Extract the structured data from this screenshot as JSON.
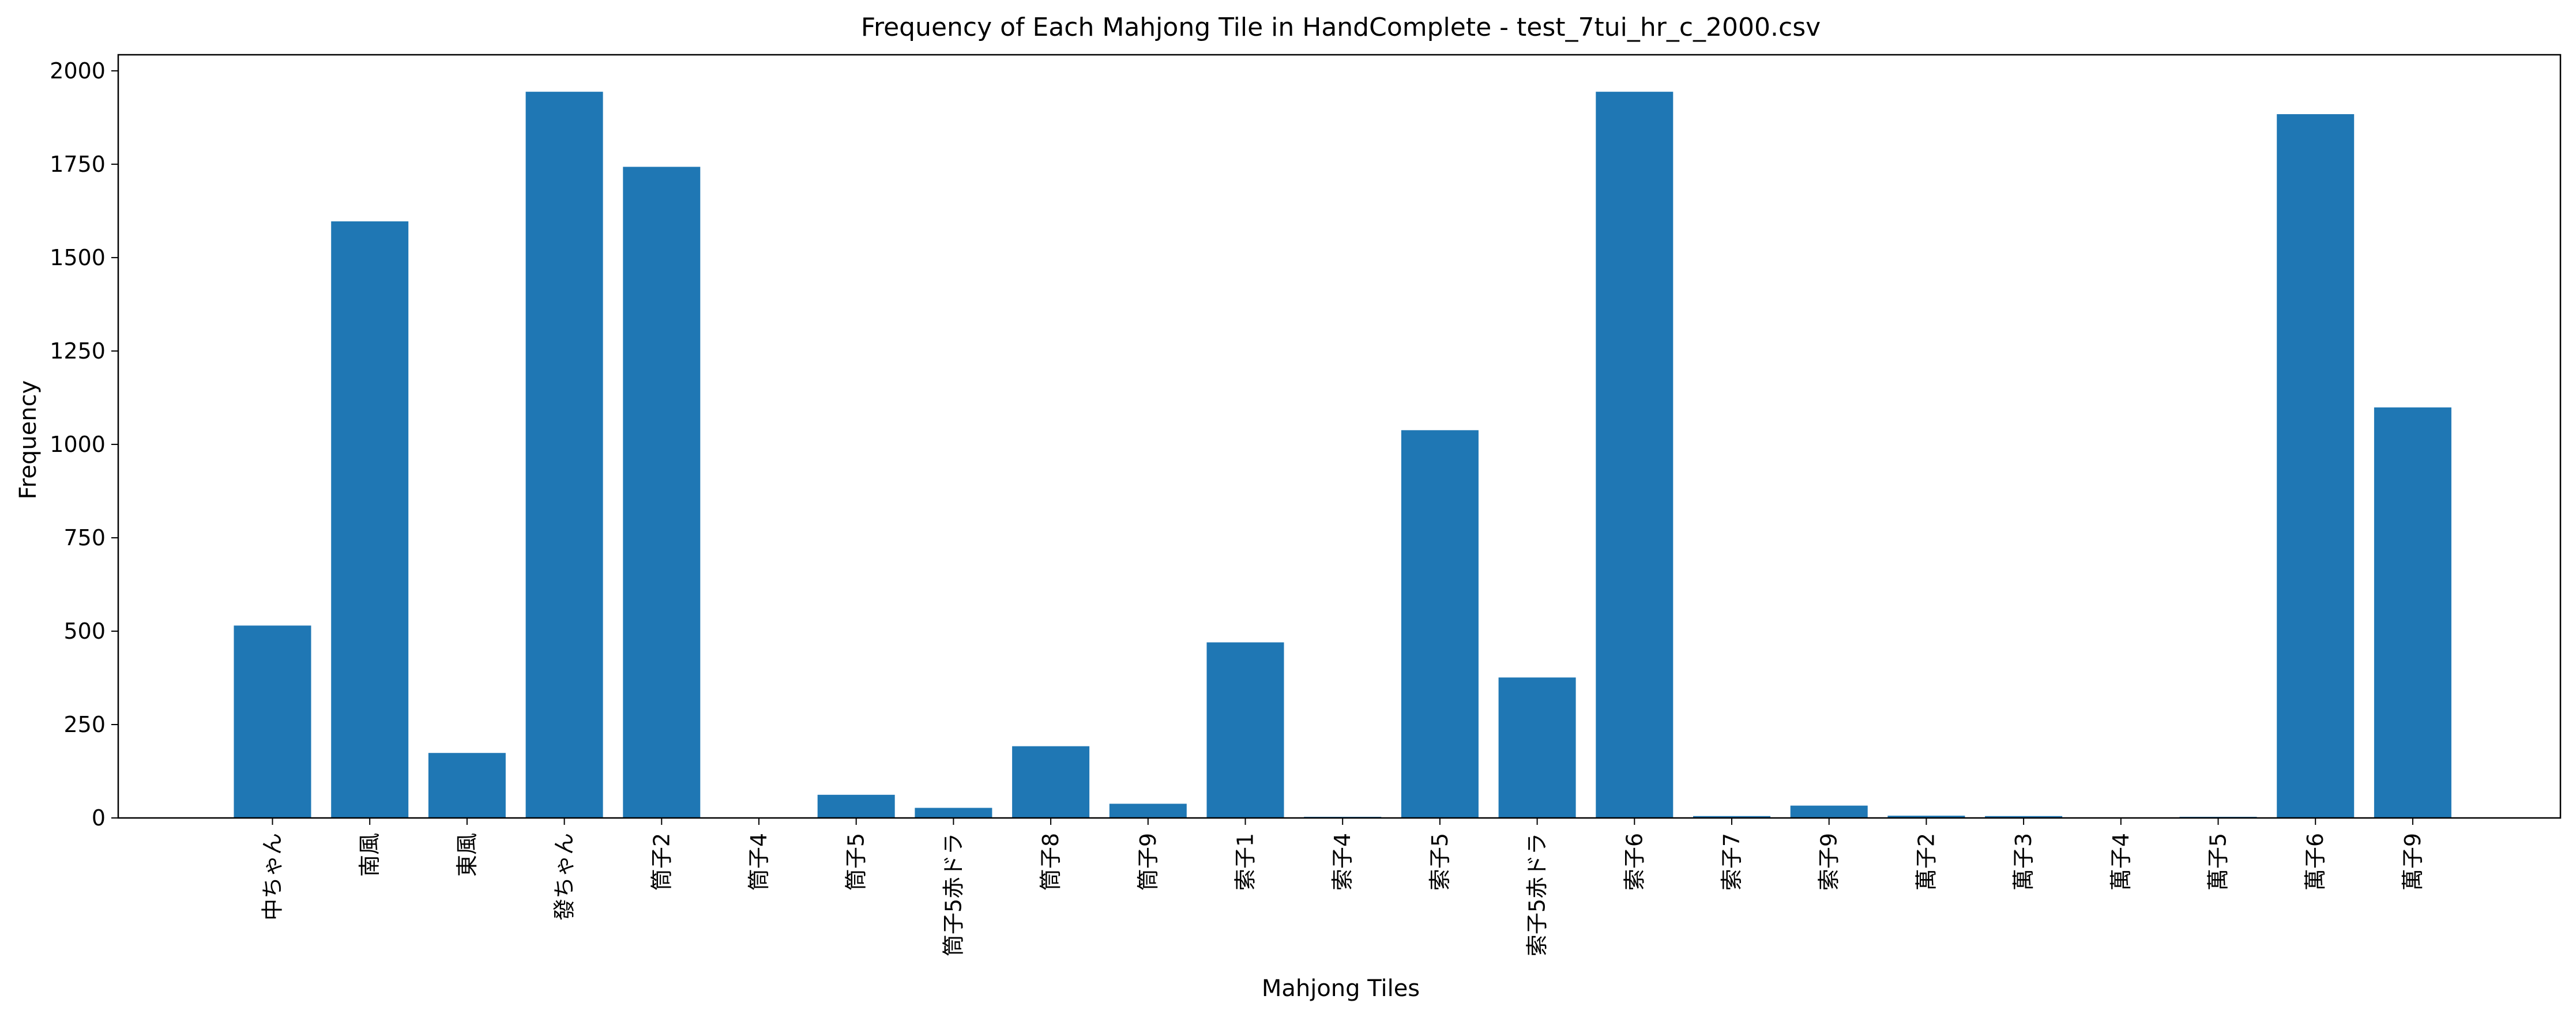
{
  "chart_data": {
    "type": "bar",
    "title": "Frequency of Each Mahjong Tile in HandComplete - test_7tui_hr_c_2000.csv",
    "xlabel": "Mahjong Tiles",
    "ylabel": "Frequency",
    "categories": [
      "中ちゃん",
      "南風",
      "東風",
      "發ちゃん",
      "筒子2",
      "筒子4",
      "筒子5",
      "筒子5赤ドラ",
      "筒子8",
      "筒子9",
      "索子1",
      "索子4",
      "索子5",
      "索子5赤ドラ",
      "索子6",
      "索子7",
      "索子9",
      "萬子2",
      "萬子3",
      "萬子4",
      "萬子5",
      "萬子6",
      "萬子9"
    ],
    "values": [
      515,
      1597,
      174,
      1944,
      1743,
      0,
      62,
      27,
      192,
      38,
      470,
      3,
      1038,
      376,
      1944,
      5,
      33,
      6,
      5,
      0,
      3,
      1884,
      1099
    ],
    "ylim": [
      0,
      2043
    ],
    "yticks": [
      0,
      250,
      500,
      750,
      1000,
      1250,
      1500,
      1750,
      2000
    ],
    "bar_color": "#1f77b4",
    "grid": false,
    "legend": "none"
  }
}
